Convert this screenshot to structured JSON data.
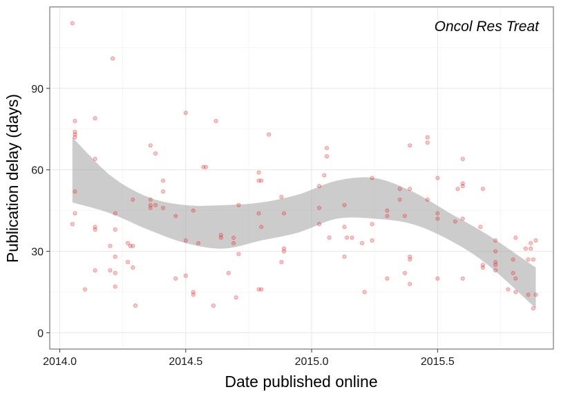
{
  "chart_data": {
    "type": "scatter",
    "title": "",
    "annotation": "Oncol Res Treat",
    "xlabel": "Date published online",
    "ylabel": "Publication delay (days)",
    "xlim": [
      2013.96,
      2015.96
    ],
    "ylim": [
      -6,
      120
    ],
    "xticks": [
      2014.0,
      2014.5,
      2015.0,
      2015.5
    ],
    "xtick_labels": [
      "2014.0",
      "2014.5",
      "2015.0",
      "2015.5"
    ],
    "yticks": [
      0,
      30,
      60,
      90
    ],
    "ytick_labels": [
      "0",
      "30",
      "60",
      "90"
    ],
    "grid": true,
    "legend": "none",
    "point_color": "#e8221f",
    "band_color": "#999999",
    "points": [
      [
        2014.05,
        114
      ],
      [
        2014.06,
        78
      ],
      [
        2014.06,
        74
      ],
      [
        2014.06,
        73
      ],
      [
        2014.06,
        72
      ],
      [
        2014.06,
        52
      ],
      [
        2014.06,
        44
      ],
      [
        2014.05,
        40
      ],
      [
        2014.1,
        16
      ],
      [
        2014.14,
        79
      ],
      [
        2014.14,
        64
      ],
      [
        2014.14,
        39
      ],
      [
        2014.14,
        38
      ],
      [
        2014.14,
        23
      ],
      [
        2014.21,
        101
      ],
      [
        2014.2,
        32
      ],
      [
        2014.2,
        23
      ],
      [
        2014.22,
        38
      ],
      [
        2014.22,
        28
      ],
      [
        2014.22,
        22
      ],
      [
        2014.22,
        17
      ],
      [
        2014.22,
        44
      ],
      [
        2014.27,
        33
      ],
      [
        2014.27,
        26
      ],
      [
        2014.28,
        32
      ],
      [
        2014.29,
        32
      ],
      [
        2014.29,
        24
      ],
      [
        2014.3,
        10
      ],
      [
        2014.29,
        49
      ],
      [
        2014.36,
        69
      ],
      [
        2014.36,
        49
      ],
      [
        2014.36,
        47
      ],
      [
        2014.36,
        46
      ],
      [
        2014.38,
        66
      ],
      [
        2014.38,
        47
      ],
      [
        2014.41,
        56
      ],
      [
        2014.41,
        52
      ],
      [
        2014.41,
        46
      ],
      [
        2014.46,
        43
      ],
      [
        2014.46,
        20
      ],
      [
        2014.5,
        81
      ],
      [
        2014.5,
        34
      ],
      [
        2014.5,
        21
      ],
      [
        2014.53,
        45
      ],
      [
        2014.53,
        15
      ],
      [
        2014.53,
        14
      ],
      [
        2014.55,
        33
      ],
      [
        2014.57,
        61
      ],
      [
        2014.58,
        61
      ],
      [
        2014.61,
        10
      ],
      [
        2014.62,
        78
      ],
      [
        2014.64,
        36
      ],
      [
        2014.64,
        35
      ],
      [
        2014.67,
        22
      ],
      [
        2014.69,
        33
      ],
      [
        2014.69,
        35
      ],
      [
        2014.71,
        47
      ],
      [
        2014.71,
        29
      ],
      [
        2014.7,
        13
      ],
      [
        2014.79,
        59
      ],
      [
        2014.79,
        56
      ],
      [
        2014.79,
        44
      ],
      [
        2014.8,
        56
      ],
      [
        2014.8,
        39
      ],
      [
        2014.79,
        16
      ],
      [
        2014.8,
        16
      ],
      [
        2014.83,
        73
      ],
      [
        2014.88,
        26
      ],
      [
        2014.88,
        50
      ],
      [
        2014.89,
        44
      ],
      [
        2014.89,
        31
      ],
      [
        2014.89,
        30
      ],
      [
        2015.03,
        54
      ],
      [
        2015.03,
        46
      ],
      [
        2015.03,
        40
      ],
      [
        2015.05,
        58
      ],
      [
        2015.06,
        65
      ],
      [
        2015.06,
        68
      ],
      [
        2015.07,
        35
      ],
      [
        2015.13,
        47
      ],
      [
        2015.13,
        28
      ],
      [
        2015.13,
        39
      ],
      [
        2015.14,
        35
      ],
      [
        2015.16,
        35
      ],
      [
        2015.2,
        33
      ],
      [
        2015.21,
        15
      ],
      [
        2015.24,
        57
      ],
      [
        2015.24,
        40
      ],
      [
        2015.24,
        34
      ],
      [
        2015.3,
        20
      ],
      [
        2015.3,
        43
      ],
      [
        2015.3,
        45
      ],
      [
        2015.35,
        53
      ],
      [
        2015.35,
        49
      ],
      [
        2015.37,
        43
      ],
      [
        2015.37,
        22
      ],
      [
        2015.39,
        69
      ],
      [
        2015.39,
        53
      ],
      [
        2015.39,
        28
      ],
      [
        2015.39,
        27
      ],
      [
        2015.39,
        18
      ],
      [
        2015.46,
        72
      ],
      [
        2015.46,
        70
      ],
      [
        2015.46,
        49
      ],
      [
        2015.5,
        57
      ],
      [
        2015.5,
        44
      ],
      [
        2015.5,
        42
      ],
      [
        2015.5,
        20
      ],
      [
        2015.57,
        41
      ],
      [
        2015.58,
        53
      ],
      [
        2015.6,
        64
      ],
      [
        2015.6,
        55
      ],
      [
        2015.6,
        54
      ],
      [
        2015.6,
        42
      ],
      [
        2015.6,
        20
      ],
      [
        2015.68,
        53
      ],
      [
        2015.68,
        25
      ],
      [
        2015.68,
        24
      ],
      [
        2015.67,
        39
      ],
      [
        2015.73,
        34
      ],
      [
        2015.73,
        30
      ],
      [
        2015.73,
        26
      ],
      [
        2015.73,
        25
      ],
      [
        2015.73,
        23
      ],
      [
        2015.78,
        16
      ],
      [
        2015.81,
        35
      ],
      [
        2015.8,
        27
      ],
      [
        2015.8,
        22
      ],
      [
        2015.81,
        20
      ],
      [
        2015.81,
        15
      ],
      [
        2015.85,
        31
      ],
      [
        2015.87,
        33
      ],
      [
        2015.87,
        31
      ],
      [
        2015.86,
        27
      ],
      [
        2015.88,
        27
      ],
      [
        2015.86,
        14
      ],
      [
        2015.89,
        14
      ],
      [
        2015.88,
        9
      ],
      [
        2015.89,
        34
      ]
    ],
    "smooth": {
      "x": [
        2014.05,
        2014.2,
        2014.35,
        2014.5,
        2014.65,
        2014.8,
        2014.95,
        2015.1,
        2015.25,
        2015.4,
        2015.55,
        2015.7,
        2015.89
      ],
      "upper": [
        72,
        58,
        50,
        47,
        47,
        48,
        51,
        56,
        57,
        52,
        44,
        36,
        24
      ],
      "lower": [
        48,
        44,
        38,
        33,
        31,
        34,
        37,
        42,
        42,
        40,
        34,
        25,
        9
      ]
    }
  }
}
